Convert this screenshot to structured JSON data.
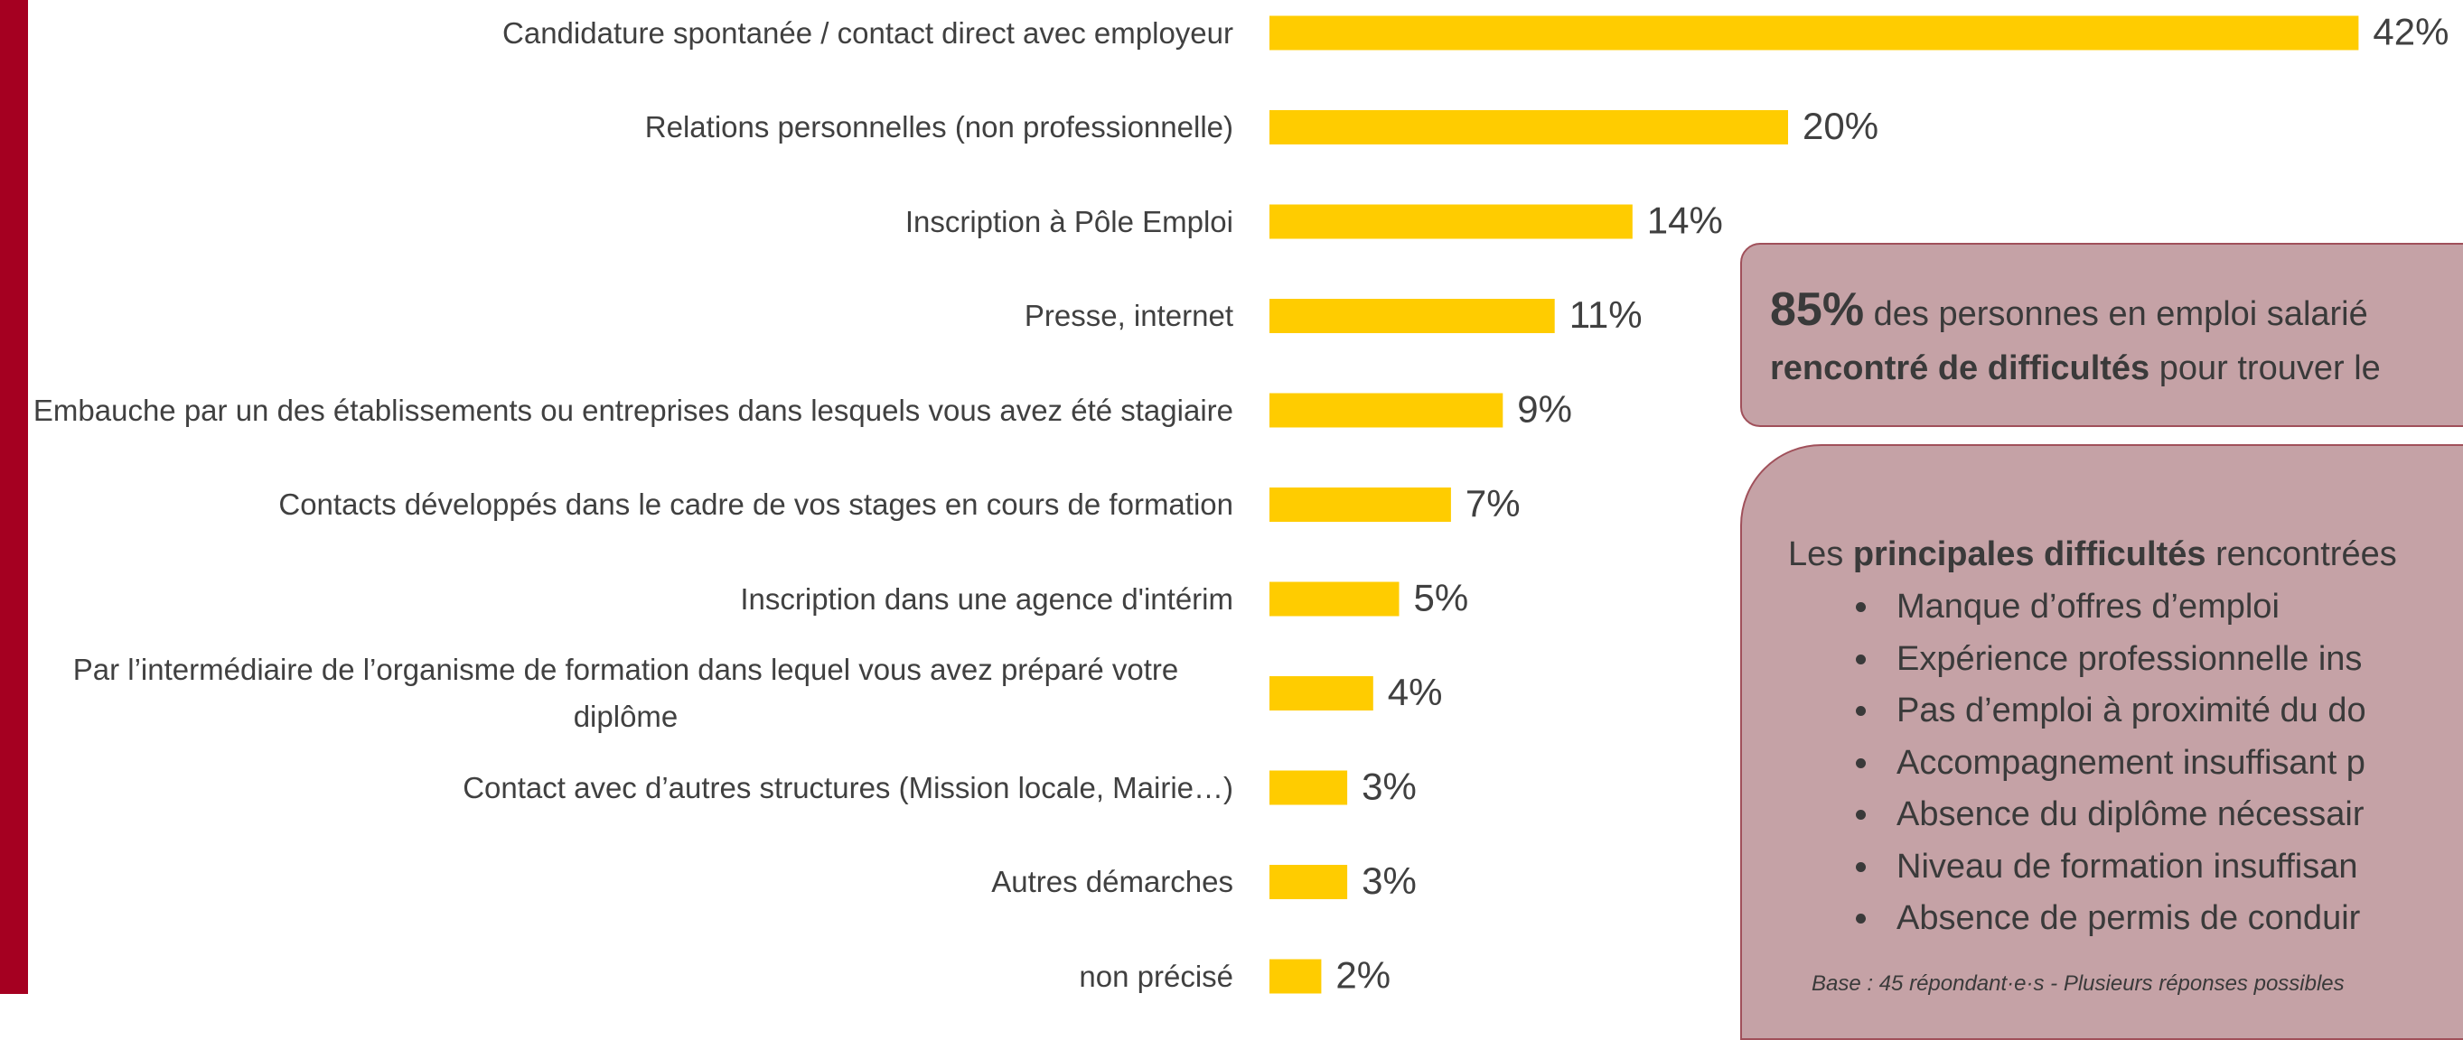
{
  "chart_data": {
    "type": "bar",
    "orientation": "horizontal",
    "categories": [
      "Candidature spontanée / contact direct avec employeur",
      "Relations personnelles (non professionnelle)",
      "Inscription à Pôle Emploi",
      "Presse, internet",
      "Embauche par un des établissements ou entreprises dans lesquels vous avez été stagiaire",
      "Contacts développés dans le cadre de vos stages en cours de formation",
      "Inscription dans une agence d'intérim",
      "Par l’intermédiaire de l’organisme de formation dans lequel vous avez préparé votre diplôme",
      "Contact avec d’autres structures (Mission locale, Mairie…)",
      "Autres démarches",
      "non précisé"
    ],
    "values": [
      42,
      20,
      14,
      11,
      9,
      7,
      5,
      4,
      3,
      3,
      2
    ],
    "value_labels": [
      "42%",
      "20%",
      "14%",
      "11%",
      "9%",
      "7%",
      "5%",
      "4%",
      "3%",
      "3%",
      "2%"
    ],
    "color": "#ffcc00"
  },
  "highlight": {
    "figure": "85%",
    "text1": "des personnes en emploi salarié",
    "bold2": "rencontré de difficultés",
    "text2": "pour trouver le"
  },
  "difficulties": {
    "intro": "Les",
    "intro_bold": "principales difficultés",
    "intro_rest": "rencontrées",
    "items": [
      "Manque d’offres d’emploi",
      "Expérience professionnelle ins",
      "Pas d’emploi à proximité du do",
      "Accompagnement insuffisant p",
      "Absence du diplôme nécessair",
      "Niveau de formation insuffisan",
      "Absence de permis de conduir"
    ],
    "note": "Base : 45 répondant·e·s - Plusieurs réponses possibles"
  }
}
